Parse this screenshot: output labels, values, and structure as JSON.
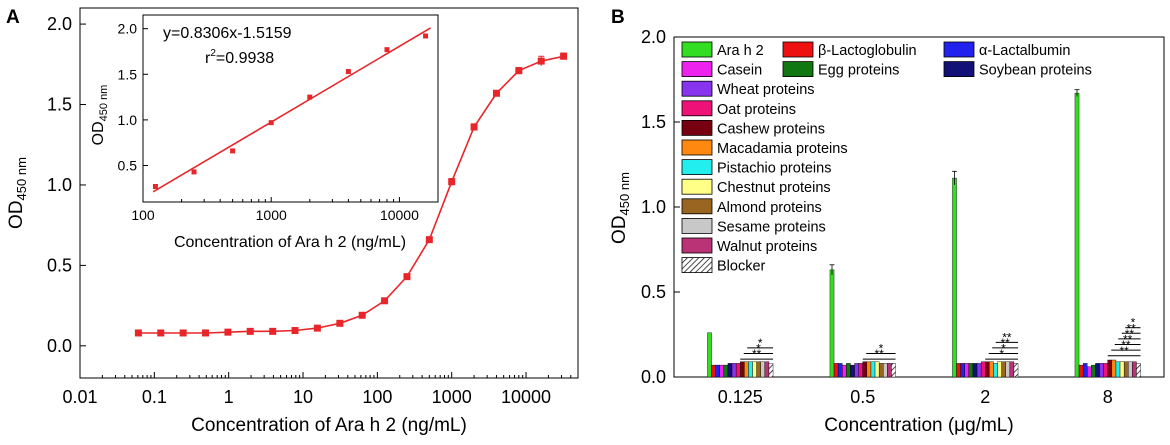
{
  "colors": {
    "red": "#e8262a",
    "green": "#33dd22",
    "axis": "#000000"
  },
  "chart_data": [
    {
      "panel_label": "A",
      "type": "line",
      "xscale": "log",
      "x": [
        0.061,
        0.122,
        0.244,
        0.488,
        0.977,
        1.95,
        3.91,
        7.81,
        15.6,
        31.3,
        62.5,
        125,
        250,
        500,
        1000,
        2000,
        4000,
        8000,
        16000,
        32000
      ],
      "y": [
        0.08,
        0.08,
        0.08,
        0.08,
        0.085,
        0.09,
        0.09,
        0.095,
        0.11,
        0.14,
        0.19,
        0.28,
        0.43,
        0.66,
        1.02,
        1.36,
        1.57,
        1.71,
        1.77,
        1.8
      ],
      "err": [
        0.01,
        0.01,
        0.01,
        0.01,
        0.01,
        0.01,
        0.01,
        0.01,
        0.01,
        0.01,
        0.01,
        0.01,
        0.01,
        0.01,
        0.02,
        0.02,
        0.01,
        0.02,
        0.03,
        0.02
      ],
      "xlabel": "Concentration of Ara h 2 (ng/mL)",
      "ylabel_main": "OD",
      "ylabel_sub": "450 nm",
      "xlim": [
        0.01,
        50000
      ],
      "ylim": [
        -0.2,
        2.1
      ],
      "xticks": [
        0.01,
        0.1,
        1,
        10,
        100,
        1000,
        10000
      ],
      "xtick_labels": [
        "0.01",
        "0.1",
        "1",
        "10",
        "100",
        "1000",
        "10000"
      ],
      "yticks": [
        0.0,
        0.5,
        1.0,
        1.5,
        2.0
      ],
      "ytick_labels": [
        "0.0",
        "0.5",
        "1.0",
        "1.5",
        "2.0"
      ],
      "inset": {
        "type": "scatter",
        "xscale": "log",
        "x": [
          125,
          250,
          500,
          1000,
          2000,
          4000,
          8000,
          16000
        ],
        "y": [
          0.27,
          0.43,
          0.66,
          0.97,
          1.25,
          1.53,
          1.77,
          1.92
        ],
        "fit_slope": 0.8306,
        "fit_intercept": -1.5159,
        "equation": "y=0.8306x-1.5159",
        "r2_prefix": "r",
        "r2_sup": "2",
        "r2_value": "=0.9938",
        "xlabel": "Concentration of Ara h 2 (ng/mL)",
        "ylabel_main": "OD",
        "ylabel_sub": "450 nm",
        "xlim": [
          100,
          20000
        ],
        "ylim": [
          0.1,
          2.15
        ],
        "xticks": [
          100,
          1000,
          10000
        ],
        "xtick_labels": [
          "100",
          "1000",
          "10000"
        ],
        "yticks": [
          0.5,
          1.0,
          1.5,
          2.0
        ],
        "ytick_labels": [
          "0.5",
          "1.0",
          "1.5",
          "2.0"
        ]
      }
    },
    {
      "panel_label": "B",
      "type": "bar",
      "categories": [
        "0.125",
        "0.5",
        "2",
        "8"
      ],
      "series": [
        {
          "name": "Ara h 2",
          "color": "#33dd22",
          "values": [
            0.26,
            0.63,
            1.17,
            1.67
          ],
          "err": [
            0,
            0.03,
            0.04,
            0.02
          ]
        },
        {
          "name": "β-Lactoglobulin",
          "color": "#ee1111",
          "values": [
            0.07,
            0.08,
            0.08,
            0.07
          ],
          "err": [
            0.005,
            0.005,
            0.005,
            0.005
          ]
        },
        {
          "name": "α-Lactalbumin",
          "color": "#2222ee",
          "values": [
            0.07,
            0.08,
            0.08,
            0.08
          ],
          "err": [
            0.005,
            0.005,
            0.005,
            0.01
          ]
        },
        {
          "name": "Casein",
          "color": "#ee22ee",
          "values": [
            0.07,
            0.07,
            0.08,
            0.06
          ],
          "err": [
            0.005,
            0.005,
            0.005,
            0.005
          ]
        },
        {
          "name": "Egg proteins",
          "color": "#117711",
          "values": [
            0.07,
            0.08,
            0.08,
            0.07
          ],
          "err": [
            0.005,
            0.005,
            0.005,
            0.005
          ]
        },
        {
          "name": "Soybean proteins",
          "color": "#111177",
          "values": [
            0.08,
            0.07,
            0.08,
            0.08
          ],
          "err": [
            0.005,
            0.005,
            0.005,
            0.005
          ]
        },
        {
          "name": "Wheat proteins",
          "color": "#8833ee",
          "values": [
            0.08,
            0.08,
            0.08,
            0.08
          ],
          "err": [
            0.005,
            0.005,
            0.005,
            0.005
          ]
        },
        {
          "name": "Oat proteins",
          "color": "#ee1177",
          "values": [
            0.08,
            0.08,
            0.09,
            0.08
          ],
          "err": [
            0.005,
            0.005,
            0.005,
            0.005
          ]
        },
        {
          "name": "Cashew proteins",
          "color": "#770011",
          "values": [
            0.09,
            0.09,
            0.09,
            0.1
          ],
          "err": [
            0.005,
            0.005,
            0.005,
            0.005
          ]
        },
        {
          "name": "Macadamia proteins",
          "color": "#ff8811",
          "values": [
            0.09,
            0.09,
            0.09,
            0.1
          ],
          "err": [
            0.005,
            0.005,
            0.005,
            0.005
          ]
        },
        {
          "name": "Pistachio proteins",
          "color": "#22eeee",
          "values": [
            0.09,
            0.09,
            0.08,
            0.09
          ],
          "err": [
            0.005,
            0.005,
            0.005,
            0.005
          ]
        },
        {
          "name": "Chestnut proteins",
          "color": "#ffff88",
          "values": [
            0.09,
            0.09,
            0.09,
            0.09
          ],
          "err": [
            0.005,
            0.005,
            0.005,
            0.005
          ]
        },
        {
          "name": "Almond proteins",
          "color": "#996622",
          "values": [
            0.09,
            0.08,
            0.09,
            0.09
          ],
          "err": [
            0.005,
            0.005,
            0.005,
            0.005
          ]
        },
        {
          "name": "Sesame proteins",
          "color": "#c8c8c8",
          "values": [
            0.09,
            0.08,
            0.09,
            0.09
          ],
          "err": [
            0.005,
            0.005,
            0.005,
            0.005
          ]
        },
        {
          "name": "Walnut proteins",
          "color": "#bb3377",
          "values": [
            0.09,
            0.08,
            0.09,
            0.09
          ],
          "err": [
            0.005,
            0.005,
            0.005,
            0.005
          ]
        },
        {
          "name": "Blocker",
          "color": "#ffffff",
          "hatch": true,
          "values": [
            0.08,
            0.08,
            0.08,
            0.08
          ],
          "err": [
            0.005,
            0.005,
            0.005,
            0.005
          ]
        }
      ],
      "significance": [
        {
          "category": 0,
          "marks": [
            "**",
            "*",
            "*"
          ]
        },
        {
          "category": 1,
          "marks": [
            "**",
            "*"
          ]
        },
        {
          "category": 2,
          "marks": [
            "*",
            "*",
            "**",
            "**"
          ]
        },
        {
          "category": 3,
          "marks": [
            "**",
            "**",
            "**",
            "**",
            "**",
            "*"
          ]
        }
      ],
      "xlabel": "Concentration (μg/mL)",
      "ylabel_main": "OD",
      "ylabel_sub": "450 nm",
      "ylim": [
        0,
        2.0
      ],
      "yticks": [
        0.0,
        0.5,
        1.0,
        1.5,
        2.0
      ],
      "ytick_labels": [
        "0.0",
        "0.5",
        "1.0",
        "1.5",
        "2.0"
      ]
    }
  ]
}
